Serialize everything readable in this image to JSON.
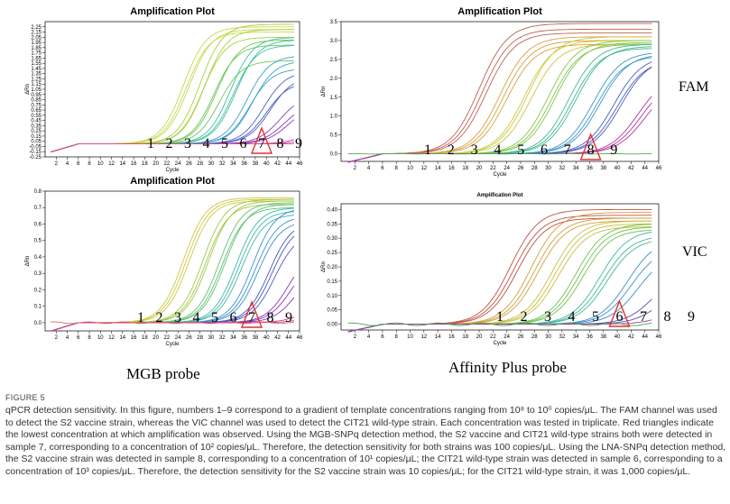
{
  "figure": {
    "label": "FIGURE 5",
    "caption": "qPCR detection sensitivity. In this figure, numbers 1–9 correspond to a gradient of template concentrations ranging from 10⁸ to 10⁰ copies/μL. The FAM channel was used to detect the S2 vaccine strain, whereas the VIC channel was used to detect the CIT21 wild-type strain. Each concentration was tested in triplicate. Red triangles indicate the lowest concentration at which amplification was observed. Using the MGB-SNPq detection method, the S2 vaccine and CIT21 wild-type strains both were detected in sample 7, corresponding to a concentration of 10² copies/μL. Therefore, the detection sensitivity for both strains was 100 copies/μL. Using the LNA-SNPq detection method, the S2 vaccine strain was detected in sample 8, corresponding to a concentration of 10¹ copies/μL; the CIT21 wild-type strain was detected in sample 6, corresponding to a concentration of 10³ copies/μL. Therefore, the detection sensitivity for the S2 vaccine strain was 10 copies/μL; for the CIT21 wild-type strain, it was 1,000 copies/μL."
  },
  "labels": {
    "fam": "FAM",
    "vic": "VIC",
    "mgb": "MGB probe",
    "affinity": "Affinity Plus probe"
  },
  "chart_data": [
    {
      "id": "mgb_fam",
      "type": "line",
      "title": "Amplification Plot",
      "xlabel": "Cycle",
      "ylabel": "ΔRn",
      "xlim": [
        0,
        46
      ],
      "ylim": [
        -0.25,
        2.35
      ],
      "xticks": [
        2,
        4,
        6,
        8,
        10,
        12,
        14,
        16,
        18,
        20,
        22,
        24,
        26,
        28,
        30,
        32,
        34,
        36,
        38,
        40,
        42,
        44,
        46
      ],
      "yticks": [
        -0.25,
        -0.15,
        -0.05,
        0.05,
        0.15,
        0.25,
        0.35,
        0.45,
        0.55,
        0.65,
        0.75,
        0.85,
        0.95,
        1.05,
        1.15,
        1.25,
        1.35,
        1.45,
        1.55,
        1.65,
        1.75,
        1.85,
        1.95,
        2.05,
        2.15,
        2.25
      ],
      "ytick_labels": [
        "-0.25",
        "-0.15",
        "-0.05",
        "0.05",
        "0.15",
        "0.25",
        "0.35",
        "0.45",
        "0.55",
        "0.65",
        "0.75",
        "0.85",
        "0.95",
        "1.05",
        "1.15",
        "1.25",
        "1.35",
        "1.45",
        "1.55",
        "1.65",
        "1.75",
        "1.85",
        "1.95",
        "2.05",
        "2.15",
        "2.25"
      ],
      "sample_numbers": [
        "1",
        "2",
        "3",
        "4",
        "5",
        "6",
        "7",
        "8",
        "9"
      ],
      "marked_sample": "7",
      "series": [
        {
          "name": "1",
          "color": "#c8d84a",
          "ct": [
            20.5,
            21.0,
            21.5
          ],
          "plateau": [
            2.25,
            2.15,
            2.2
          ]
        },
        {
          "name": "2",
          "color": "#a8d040",
          "ct": [
            23.5,
            24.0,
            24.3
          ],
          "plateau": [
            2.3,
            2.05,
            2.2
          ]
        },
        {
          "name": "3",
          "color": "#6ac858",
          "ct": [
            26.0,
            26.5,
            27.0
          ],
          "plateau": [
            1.9,
            2.0,
            1.6
          ]
        },
        {
          "name": "4",
          "color": "#40c0a0",
          "ct": [
            29.0,
            29.5,
            30.0
          ],
          "plateau": [
            2.05,
            1.9,
            2.0
          ]
        },
        {
          "name": "5",
          "color": "#3aa0d0",
          "ct": [
            32.0,
            32.5,
            33.0
          ],
          "plateau": [
            1.7,
            1.45,
            1.6
          ]
        },
        {
          "name": "6",
          "color": "#4a60c8",
          "ct": [
            35.0,
            35.5,
            36.2
          ],
          "plateau": [
            1.4,
            1.2,
            1.3
          ]
        },
        {
          "name": "7",
          "color": "#8a3ac0",
          "ct": [
            38.0,
            38.8,
            39.5
          ],
          "plateau": [
            0.95,
            0.8,
            0.75
          ]
        },
        {
          "name": "8",
          "color": "#c040a8",
          "ct": [
            42.5,
            43.5
          ],
          "plateau": [
            0.3,
            0.2
          ]
        },
        {
          "name": "9",
          "color": "#e05070",
          "ct": [
            45.5
          ],
          "plateau": [
            0.06
          ]
        }
      ]
    },
    {
      "id": "affinity_fam",
      "type": "line",
      "title": "Amplification Plot",
      "xlabel": "Cycle",
      "ylabel": "ΔRn",
      "xlim": [
        0,
        46
      ],
      "ylim": [
        -0.2,
        3.5
      ],
      "xticks": [
        2,
        4,
        6,
        8,
        10,
        12,
        14,
        16,
        18,
        20,
        22,
        24,
        26,
        28,
        30,
        32,
        34,
        36,
        38,
        40,
        42,
        44,
        46
      ],
      "yticks": [
        0.0,
        0.5,
        1.0,
        1.5,
        2.0,
        2.5,
        3.0,
        3.5
      ],
      "ytick_labels": [
        "0.0",
        "0.5",
        "1.0",
        "1.5",
        "2.0",
        "2.5",
        "3.0",
        "3.5"
      ],
      "sample_numbers": [
        "1",
        "2",
        "3",
        "4",
        "5",
        "6",
        "7",
        "8",
        "9"
      ],
      "marked_sample": "8",
      "series": [
        {
          "name": "1",
          "color": "#c06050",
          "ct": [
            15.5,
            16.0,
            16.5
          ],
          "plateau": [
            3.45,
            3.3,
            3.2
          ]
        },
        {
          "name": "2",
          "color": "#d8a040",
          "ct": [
            18.5,
            19.0,
            19.5
          ],
          "plateau": [
            3.1,
            3.0,
            2.9
          ]
        },
        {
          "name": "3",
          "color": "#c8c840",
          "ct": [
            22.0,
            22.5,
            23.0
          ],
          "plateau": [
            3.0,
            3.1,
            2.9
          ]
        },
        {
          "name": "4",
          "color": "#80c848",
          "ct": [
            25.5,
            26.0,
            26.5
          ],
          "plateau": [
            3.0,
            2.9,
            2.95
          ]
        },
        {
          "name": "5",
          "color": "#40b890",
          "ct": [
            28.5,
            29.0,
            29.5
          ],
          "plateau": [
            2.9,
            2.8,
            2.85
          ]
        },
        {
          "name": "6",
          "color": "#3a98c8",
          "ct": [
            32.0,
            32.5,
            33.0
          ],
          "plateau": [
            2.7,
            2.6,
            2.65
          ]
        },
        {
          "name": "7",
          "color": "#4a5ac0",
          "ct": [
            35.0,
            35.5,
            36.0
          ],
          "plateau": [
            2.6,
            2.5,
            2.55
          ]
        },
        {
          "name": "8",
          "color": "#b03aa0",
          "ct": [
            38.5,
            39.0,
            39.5
          ],
          "plateau": [
            2.1,
            2.0,
            1.9
          ]
        },
        {
          "name": "9",
          "color": "#50b050",
          "ct": [],
          "plateau": []
        }
      ]
    },
    {
      "id": "mgb_vic",
      "type": "line",
      "title": "Amplification Plot",
      "xlabel": "Cycle",
      "ylabel": "ΔRn",
      "xlim": [
        0,
        46
      ],
      "ylim": [
        -0.05,
        0.8
      ],
      "xticks": [
        2,
        4,
        6,
        8,
        10,
        12,
        14,
        16,
        18,
        20,
        22,
        24,
        26,
        28,
        30,
        32,
        34,
        36,
        38,
        40,
        42,
        44,
        46
      ],
      "yticks": [
        0.0,
        0.1,
        0.2,
        0.3,
        0.4,
        0.5,
        0.6,
        0.7,
        0.8
      ],
      "ytick_labels": [
        "0.0",
        "0.1",
        "0.2",
        "0.3",
        "0.4",
        "0.5",
        "0.6",
        "0.7",
        "0.8"
      ],
      "sample_numbers": [
        "1",
        "2",
        "3",
        "4",
        "5",
        "6",
        "7",
        "8",
        "9"
      ],
      "marked_sample": "7",
      "series": [
        {
          "name": "1",
          "color": "#d0c840",
          "ct": [
            20.5,
            21.0,
            21.5
          ],
          "plateau": [
            0.76,
            0.75,
            0.74
          ]
        },
        {
          "name": "2",
          "color": "#a0c848",
          "ct": [
            24.0,
            24.5,
            25.0
          ],
          "plateau": [
            0.75,
            0.72,
            0.74
          ]
        },
        {
          "name": "3",
          "color": "#60c070",
          "ct": [
            27.0,
            27.5,
            28.0
          ],
          "plateau": [
            0.73,
            0.7,
            0.72
          ]
        },
        {
          "name": "4",
          "color": "#40b8a8",
          "ct": [
            30.0,
            30.5,
            31.0
          ],
          "plateau": [
            0.7,
            0.68,
            0.66
          ]
        },
        {
          "name": "5",
          "color": "#3a90d0",
          "ct": [
            33.0,
            33.5,
            34.0
          ],
          "plateau": [
            0.7,
            0.65,
            0.62
          ]
        },
        {
          "name": "6",
          "color": "#4a58c0",
          "ct": [
            36.0,
            36.5,
            37.0
          ],
          "plateau": [
            0.62,
            0.6,
            0.55
          ]
        },
        {
          "name": "7",
          "color": "#8838b8",
          "ct": [
            39.5,
            40.0,
            41.0
          ],
          "plateau": [
            0.45,
            0.4,
            0.35
          ]
        },
        {
          "name": "8",
          "color": "#c04090",
          "ct": [
            43.0,
            44.5
          ],
          "plateau": [
            0.15,
            0.1
          ]
        },
        {
          "name": "9",
          "color": "#e06060",
          "ct": [],
          "plateau": []
        }
      ]
    },
    {
      "id": "affinity_vic",
      "type": "line",
      "title": "Amplification Plot",
      "xlabel": "Cycle",
      "ylabel": "ΔRn",
      "xlim": [
        0,
        46
      ],
      "ylim": [
        -0.02,
        0.42
      ],
      "xticks": [
        2,
        4,
        6,
        8,
        10,
        12,
        14,
        16,
        18,
        20,
        22,
        24,
        26,
        28,
        30,
        32,
        34,
        36,
        38,
        40,
        42,
        44,
        46
      ],
      "yticks": [
        0.0,
        0.05,
        0.1,
        0.15,
        0.2,
        0.25,
        0.3,
        0.35,
        0.4
      ],
      "ytick_labels": [
        "0.00",
        "0.05",
        "0.10",
        "0.15",
        "0.20",
        "0.25",
        "0.30",
        "0.35",
        "0.40"
      ],
      "sample_numbers": [
        "1",
        "2",
        "3",
        "4",
        "5",
        "6",
        "7",
        "8",
        "9"
      ],
      "marked_sample": "6",
      "series": [
        {
          "name": "1",
          "color": "#c05040",
          "ct": [
            20.0,
            20.5,
            21.0
          ],
          "plateau": [
            0.4,
            0.38,
            0.37
          ]
        },
        {
          "name": "2",
          "color": "#d0a040",
          "ct": [
            23.0,
            23.5,
            24.0
          ],
          "plateau": [
            0.39,
            0.37,
            0.36
          ]
        },
        {
          "name": "3",
          "color": "#c8c040",
          "ct": [
            26.0,
            26.5,
            27.0
          ],
          "plateau": [
            0.36,
            0.35,
            0.34
          ]
        },
        {
          "name": "4",
          "color": "#70c050",
          "ct": [
            29.5,
            30.0,
            30.5
          ],
          "plateau": [
            0.35,
            0.34,
            0.33
          ]
        },
        {
          "name": "5",
          "color": "#40b898",
          "ct": [
            33.0,
            33.5,
            34.0
          ],
          "plateau": [
            0.33,
            0.31,
            0.3
          ]
        },
        {
          "name": "6",
          "color": "#3a90c8",
          "ct": [
            37.0,
            37.5,
            38.5
          ],
          "plateau": [
            0.3,
            0.27,
            0.25
          ]
        },
        {
          "name": "7",
          "color": "#5050b8",
          "ct": [
            41.0,
            42.0
          ],
          "plateau": [
            0.2,
            0.15
          ]
        },
        {
          "name": "8",
          "color": "#a040a0",
          "ct": [
            44.0
          ],
          "plateau": [
            0.1
          ]
        },
        {
          "name": "9",
          "color": "#50a050",
          "ct": [],
          "plateau": []
        }
      ]
    }
  ]
}
